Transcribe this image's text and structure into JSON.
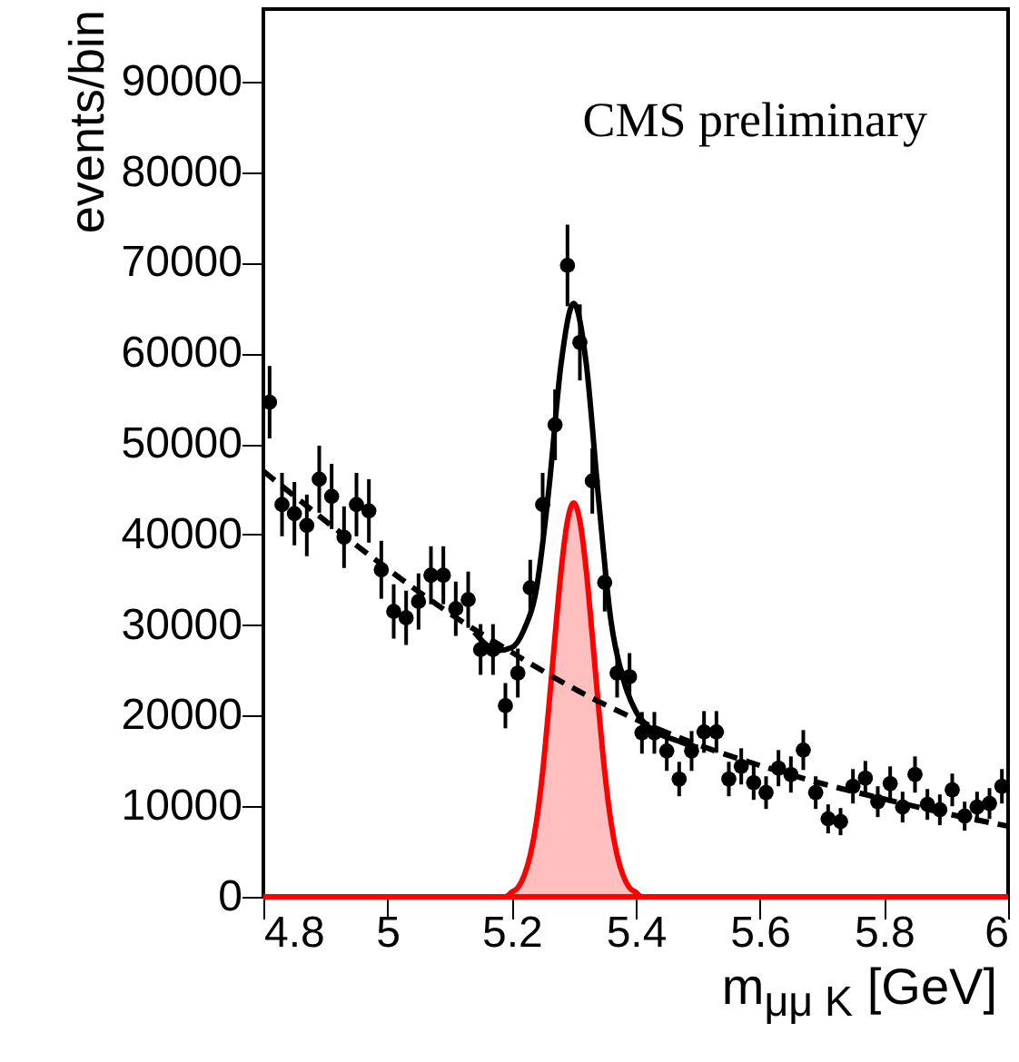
{
  "chart_data": {
    "type": "scatter",
    "xlabel": "m$_{μμ K}$ [GeV]",
    "ylabel": "events/bin",
    "annotations": [
      "CMS preliminary"
    ],
    "xlim": [
      4.8,
      6.0
    ],
    "ylim": [
      0,
      98000
    ],
    "xticks": [
      4.8,
      5,
      5.2,
      5.4,
      5.6,
      5.8,
      6
    ],
    "yticks": [
      0,
      10000,
      20000,
      30000,
      40000,
      50000,
      60000,
      70000,
      80000,
      90000
    ],
    "series": [
      {
        "type": "area",
        "color": "#ff0000",
        "x": [
          4.8,
          5.17,
          5.18,
          5.19,
          5.2,
          5.21,
          5.22,
          5.23,
          5.24,
          5.25,
          5.26,
          5.27,
          5.28,
          5.29,
          5.3,
          5.31,
          5.32,
          5.33,
          5.34,
          5.35,
          5.36,
          5.37,
          5.38,
          5.39,
          5.4,
          5.41,
          5.42,
          5.43,
          6.0
        ],
        "values": [
          0,
          0,
          0,
          0,
          500,
          1000,
          2300,
          4600,
          8300,
          13800,
          21000,
          28800,
          36200,
          41500,
          43500,
          41500,
          36200,
          28800,
          21000,
          13800,
          8300,
          4600,
          2300,
          1000,
          500,
          0,
          0,
          0,
          0
        ]
      },
      {
        "type": "line",
        "color": "#000000",
        "line_style": "dashed",
        "x": [
          4.8,
          4.9,
          5.0,
          5.1,
          5.2,
          5.3,
          5.4,
          5.5,
          5.6,
          5.7,
          5.8,
          5.9,
          6.0
        ],
        "values": [
          47000,
          41500,
          36200,
          31300,
          27000,
          23000,
          19600,
          16800,
          14500,
          12500,
          10800,
          9200,
          7800
        ]
      },
      {
        "type": "line",
        "color": "#000000",
        "line_style": "solid",
        "x": [
          5.14,
          5.16,
          5.18,
          5.2,
          5.22,
          5.24,
          5.26,
          5.28,
          5.3,
          5.32,
          5.34,
          5.36,
          5.38,
          5.4,
          5.42,
          5.44,
          5.46,
          5.48,
          5.5
        ],
        "values": [
          29200,
          27800,
          27200,
          27500,
          29500,
          34000,
          45000,
          59000,
          65500,
          59000,
          44000,
          30500,
          24000,
          20500,
          18800,
          17900,
          17400,
          16900,
          16500
        ]
      },
      {
        "marker": "circle",
        "color": "#000000",
        "x": [
          4.81,
          4.83,
          4.85,
          4.87,
          4.89,
          4.91,
          4.93,
          4.95,
          4.97,
          4.99,
          5.01,
          5.03,
          5.05,
          5.07,
          5.09,
          5.11,
          5.13,
          5.15,
          5.17,
          5.19,
          5.21,
          5.23,
          5.25,
          5.27,
          5.29,
          5.31,
          5.33,
          5.35,
          5.37,
          5.39,
          5.41,
          5.43,
          5.45,
          5.47,
          5.49,
          5.51,
          5.53,
          5.55,
          5.57,
          5.59,
          5.61,
          5.63,
          5.65,
          5.67,
          5.69,
          5.71,
          5.73,
          5.75,
          5.77,
          5.79,
          5.81,
          5.83,
          5.85,
          5.87,
          5.89,
          5.91,
          5.93,
          5.95,
          5.97,
          5.99
        ],
        "values": [
          54600,
          43300,
          42300,
          41000,
          46100,
          44200,
          39700,
          43300,
          42600,
          36100,
          31500,
          30800,
          32600,
          35500,
          35500,
          31800,
          32800,
          27300,
          27300,
          21100,
          24700,
          34100,
          43300,
          52100,
          69700,
          61200,
          45900,
          34700,
          24700,
          24300,
          18100,
          18100,
          16100,
          13000,
          16100,
          18200,
          18200,
          13000,
          14400,
          12600,
          11500,
          14200,
          13500,
          16200,
          11500,
          8600,
          8300,
          12200,
          13100,
          10500,
          12500,
          9900,
          13500,
          10200,
          9600,
          11800,
          8900,
          9900,
          10300,
          12200
        ],
        "errors": [
          4000,
          3500,
          3500,
          3400,
          3700,
          3600,
          3400,
          3500,
          3500,
          3200,
          3000,
          3000,
          3100,
          3200,
          3200,
          3000,
          3100,
          2800,
          2800,
          2500,
          2700,
          3100,
          3500,
          3900,
          4500,
          4200,
          3600,
          3200,
          2700,
          2600,
          2300,
          2300,
          2200,
          1900,
          2200,
          2300,
          2300,
          1900,
          2000,
          1900,
          1800,
          2000,
          2000,
          2200,
          1800,
          1600,
          1500,
          1900,
          1900,
          1700,
          1900,
          1700,
          2000,
          1700,
          1700,
          1800,
          1600,
          1700,
          1700,
          1900
        ]
      }
    ]
  }
}
